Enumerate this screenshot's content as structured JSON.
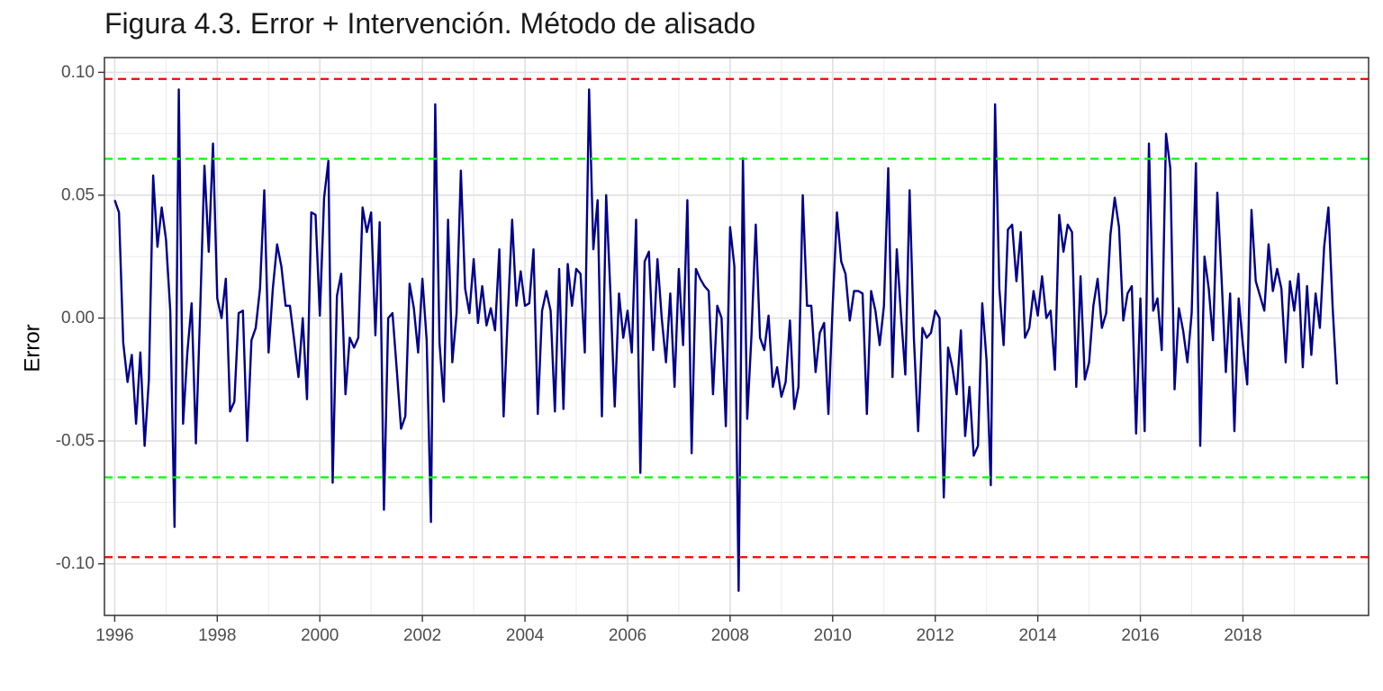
{
  "chart_data": {
    "type": "line",
    "title": "Figura 4.3. Error + Intervención. Método de alisado",
    "xlabel": "",
    "ylabel": "Error",
    "xlim": [
      1995.8,
      2020.45
    ],
    "ylim": [
      -0.121,
      0.106
    ],
    "x_ticks": [
      "1996",
      "1998",
      "2000",
      "2002",
      "2004",
      "2006",
      "2008",
      "2010",
      "2012",
      "2014",
      "2016",
      "2018"
    ],
    "y_ticks": [
      "-0.10",
      "-0.05",
      "0.00",
      "0.05",
      "0.10"
    ],
    "grid": true,
    "legend": "none",
    "series": [
      {
        "color": "#00008B",
        "x_start": 1996.0,
        "x_step": 0.0833333,
        "values": [
          0.048,
          0.043,
          -0.01,
          -0.026,
          -0.015,
          -0.043,
          -0.014,
          -0.052,
          -0.025,
          0.058,
          0.029,
          0.045,
          0.032,
          0.003,
          -0.085,
          0.093,
          -0.043,
          -0.014,
          0.006,
          -0.051,
          0.003,
          0.062,
          0.027,
          0.071,
          0.008,
          0.0,
          0.016,
          -0.038,
          -0.034,
          0.002,
          0.003,
          -0.05,
          -0.009,
          -0.004,
          0.012,
          0.052,
          -0.014,
          0.012,
          0.03,
          0.021,
          0.005,
          0.005,
          -0.009,
          -0.024,
          0.0,
          -0.033,
          0.043,
          0.042,
          0.001,
          0.049,
          0.064,
          -0.067,
          0.009,
          0.018,
          -0.031,
          -0.008,
          -0.012,
          -0.008,
          0.045,
          0.035,
          0.043,
          -0.007,
          0.039,
          -0.078,
          0.0,
          0.002,
          -0.021,
          -0.045,
          -0.04,
          0.014,
          0.004,
          -0.014,
          0.016,
          -0.009,
          -0.083,
          0.087,
          -0.01,
          -0.034,
          0.04,
          -0.018,
          0.002,
          0.06,
          0.012,
          0.002,
          0.024,
          -0.002,
          0.013,
          -0.003,
          0.004,
          -0.005,
          0.028,
          -0.04,
          0.002,
          0.04,
          0.005,
          0.019,
          0.005,
          0.006,
          0.028,
          -0.039,
          0.003,
          0.011,
          0.003,
          -0.038,
          0.02,
          -0.037,
          0.022,
          0.005,
          0.02,
          0.018,
          -0.014,
          0.093,
          0.028,
          0.048,
          -0.04,
          0.05,
          0.01,
          -0.036,
          0.01,
          -0.008,
          0.003,
          -0.014,
          0.04,
          -0.063,
          0.023,
          0.027,
          -0.013,
          0.024,
          0.0,
          -0.018,
          0.01,
          -0.028,
          0.02,
          -0.011,
          0.048,
          -0.055,
          0.02,
          0.016,
          0.013,
          0.011,
          -0.031,
          0.005,
          0.0,
          -0.044,
          0.037,
          0.021,
          -0.111,
          0.065,
          -0.041,
          -0.007,
          0.038,
          -0.008,
          -0.013,
          0.001,
          -0.028,
          -0.02,
          -0.032,
          -0.026,
          -0.001,
          -0.037,
          -0.028,
          0.05,
          0.005,
          0.005,
          -0.022,
          -0.006,
          -0.002,
          -0.039,
          0.005,
          0.043,
          0.023,
          0.018,
          -0.001,
          0.011,
          0.011,
          0.01,
          -0.039,
          0.011,
          0.003,
          -0.011,
          0.005,
          0.061,
          -0.024,
          0.028,
          0.001,
          -0.023,
          0.052,
          -0.008,
          -0.046,
          -0.004,
          -0.008,
          -0.006,
          0.003,
          0.0,
          -0.073,
          -0.012,
          -0.02,
          -0.031,
          -0.005,
          -0.048,
          -0.028,
          -0.056,
          -0.052,
          0.006,
          -0.017,
          -0.068,
          0.087,
          0.012,
          -0.011,
          0.036,
          0.038,
          0.015,
          0.035,
          -0.008,
          -0.004,
          0.011,
          0.001,
          0.017,
          0.0,
          0.003,
          -0.021,
          0.042,
          0.027,
          0.038,
          0.035,
          -0.028,
          0.017,
          -0.025,
          -0.018,
          0.005,
          0.016,
          -0.004,
          0.002,
          0.034,
          0.049,
          0.037,
          -0.001,
          0.01,
          0.013,
          -0.047,
          0.008,
          -0.046,
          0.071,
          0.003,
          0.008,
          -0.013,
          0.075,
          0.061,
          -0.029,
          0.004,
          -0.005,
          -0.018,
          0.002,
          0.063,
          -0.052,
          0.025,
          0.012,
          -0.009,
          0.051,
          0.016,
          -0.022,
          0.01,
          -0.046,
          0.008,
          -0.011,
          -0.027,
          0.044,
          0.015,
          0.009,
          0.003,
          0.03,
          0.011,
          0.02,
          0.012,
          -0.018,
          0.015,
          0.003,
          0.018,
          -0.02,
          0.013,
          -0.015,
          0.01,
          -0.004,
          0.029,
          0.045,
          0.004,
          -0.027
        ]
      }
    ],
    "reference_lines": [
      {
        "y": 0.0973,
        "color": "#FF0000",
        "style": "dashed"
      },
      {
        "y": 0.0648,
        "color": "#00FF00",
        "style": "dashed"
      },
      {
        "y": -0.0648,
        "color": "#00FF00",
        "style": "dashed"
      },
      {
        "y": -0.0973,
        "color": "#FF0000",
        "style": "dashed"
      }
    ]
  }
}
